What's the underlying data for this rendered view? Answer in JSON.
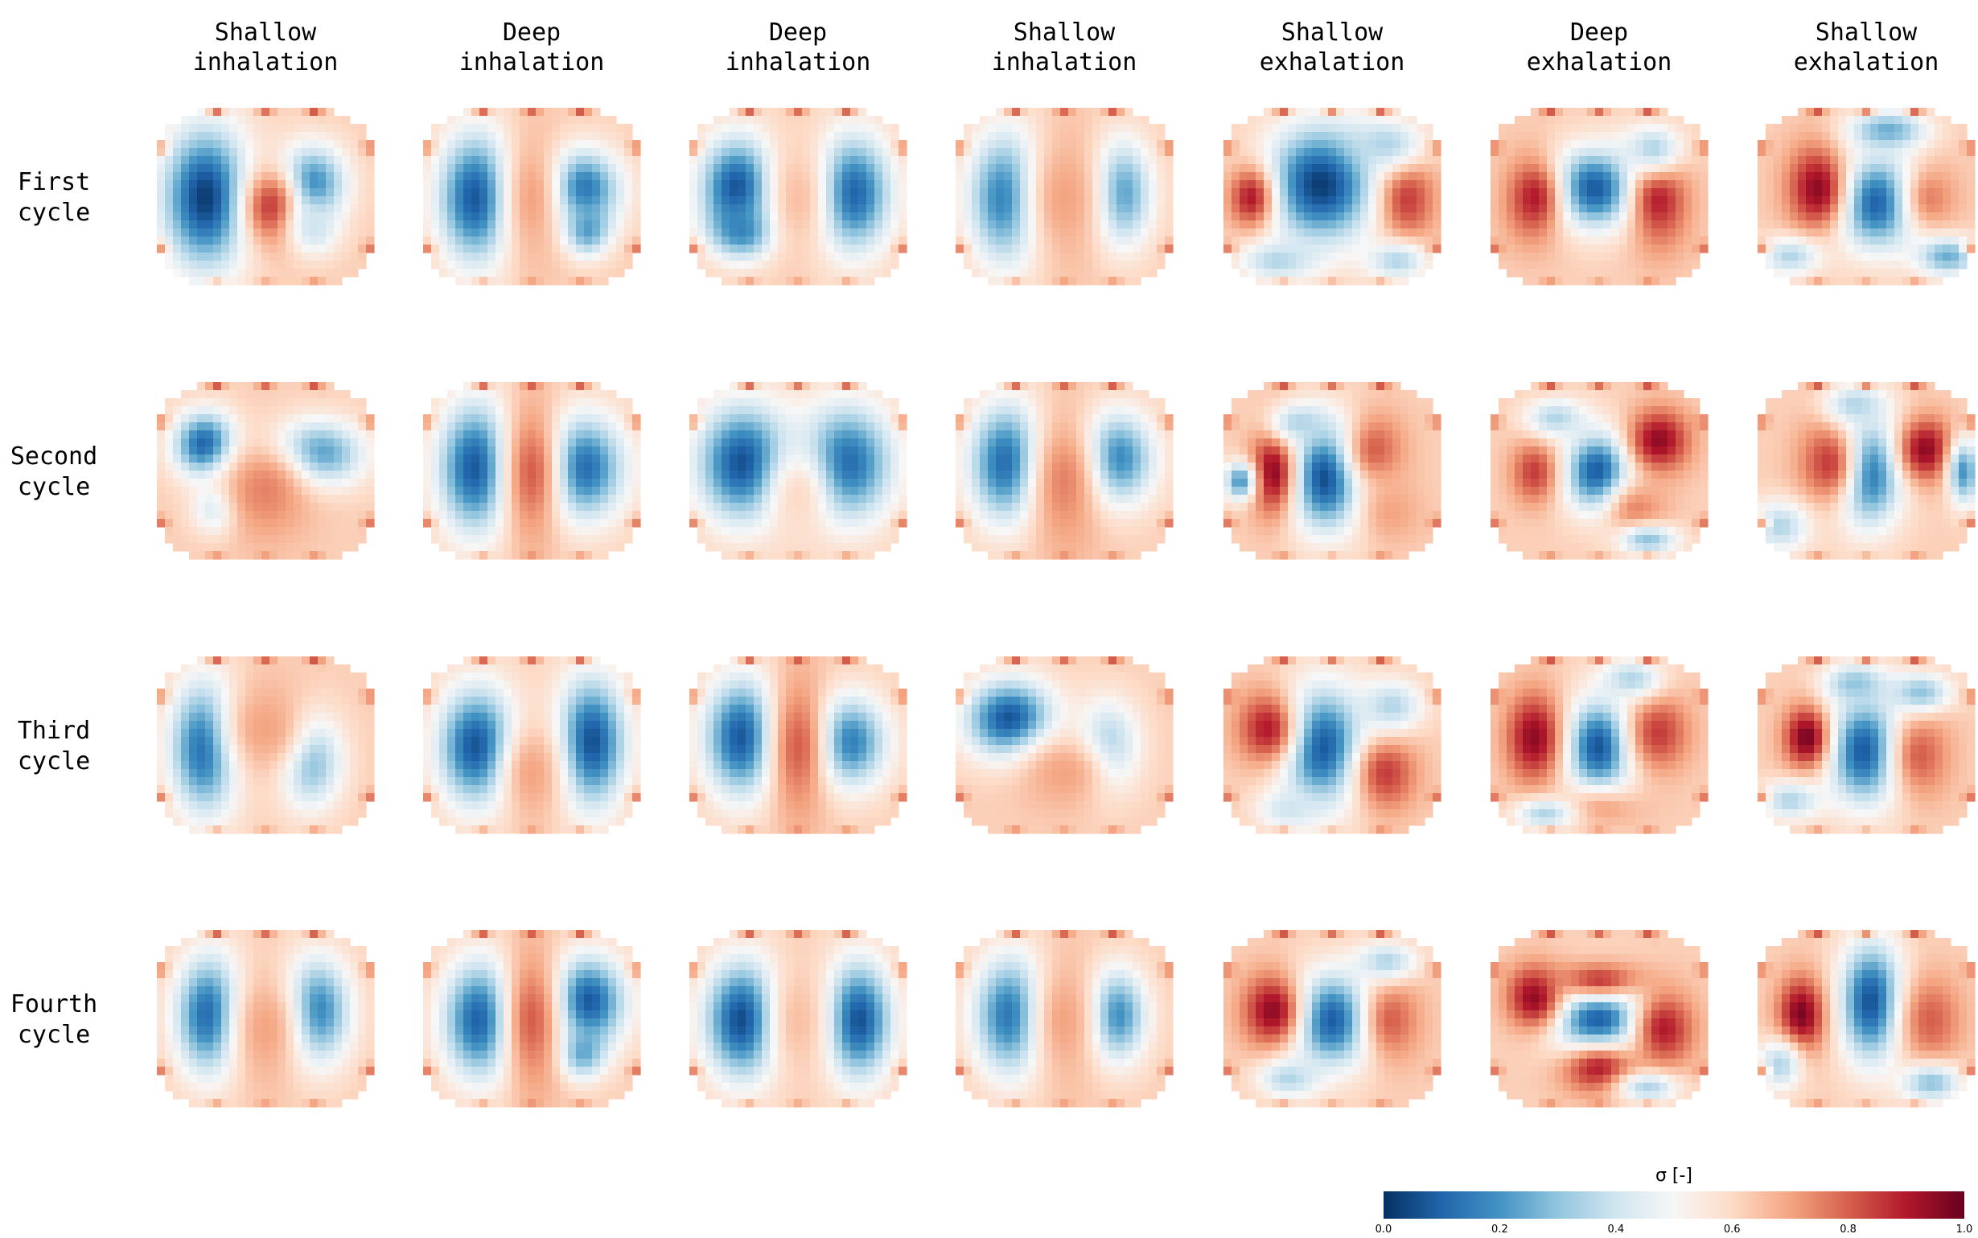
{
  "chart_data": {
    "type": "heatmap",
    "title": "",
    "columns": [
      {
        "line1": "Shallow",
        "line2": "inhalation"
      },
      {
        "line1": "Deep",
        "line2": "inhalation"
      },
      {
        "line1": "Deep",
        "line2": "inhalation"
      },
      {
        "line1": "Shallow",
        "line2": "inhalation"
      },
      {
        "line1": "Shallow",
        "line2": "exhalation"
      },
      {
        "line1": "Deep",
        "line2": "exhalation"
      },
      {
        "line1": "Shallow",
        "line2": "exhalation"
      }
    ],
    "rows": [
      {
        "line1": "First",
        "line2": "cycle"
      },
      {
        "line1": "Second",
        "line2": "cycle"
      },
      {
        "line1": "Third",
        "line2": "cycle"
      },
      {
        "line1": "Fourth",
        "line2": "cycle"
      }
    ],
    "colorbar": {
      "label": "σ [-]",
      "range": [
        0.0,
        1.0
      ],
      "ticks": [
        "0.0",
        "0.2",
        "0.4",
        "0.6",
        "0.8",
        "1.0"
      ],
      "colormap": "RdBu_r",
      "colors": [
        "#053061",
        "#2166ac",
        "#4393c3",
        "#92c5de",
        "#d1e5f0",
        "#f7f7f7",
        "#fddbc7",
        "#f4a582",
        "#d6604d",
        "#b2182b",
        "#67001f"
      ]
    },
    "panels": [
      [
        {
          "blobs": [
            [
              -0.55,
              0.0,
              0.28,
              0.55,
              0.02
            ],
            [
              0.42,
              -0.15,
              0.22,
              0.3,
              0.15
            ],
            [
              0.05,
              0.1,
              0.18,
              0.3,
              0.85
            ],
            [
              0.45,
              0.35,
              0.15,
              0.2,
              0.4
            ]
          ]
        },
        {
          "blobs": [
            [
              -0.5,
              0.0,
              0.25,
              0.5,
              0.05
            ],
            [
              0.45,
              -0.1,
              0.25,
              0.3,
              0.1
            ],
            [
              0.5,
              0.35,
              0.15,
              0.2,
              0.2
            ],
            [
              0.0,
              0.0,
              0.2,
              0.6,
              0.7
            ]
          ]
        },
        {
          "blobs": [
            [
              -0.55,
              -0.1,
              0.25,
              0.4,
              0.05
            ],
            [
              -0.5,
              0.35,
              0.2,
              0.2,
              0.15
            ],
            [
              0.5,
              -0.05,
              0.25,
              0.45,
              0.08
            ],
            [
              0.0,
              0.0,
              0.2,
              0.5,
              0.65
            ]
          ]
        },
        {
          "blobs": [
            [
              -0.5,
              0.0,
              0.25,
              0.5,
              0.05
            ],
            [
              0.5,
              -0.05,
              0.2,
              0.4,
              0.12
            ],
            [
              0.0,
              0.0,
              0.3,
              0.6,
              0.7
            ]
          ]
        },
        {
          "blobs": [
            [
              -0.1,
              -0.15,
              0.35,
              0.45,
              0.02
            ],
            [
              -0.75,
              0.0,
              0.15,
              0.25,
              0.9
            ],
            [
              0.7,
              0.0,
              0.18,
              0.35,
              0.85
            ],
            [
              0.5,
              -0.6,
              0.25,
              0.2,
              0.35
            ],
            [
              -0.5,
              0.7,
              0.25,
              0.15,
              0.35
            ],
            [
              0.6,
              0.7,
              0.2,
              0.15,
              0.35
            ]
          ]
        },
        {
          "blobs": [
            [
              -0.05,
              -0.1,
              0.35,
              0.3,
              0.05
            ],
            [
              -0.6,
              0.0,
              0.2,
              0.35,
              0.9
            ],
            [
              0.55,
              0.0,
              0.2,
              0.4,
              0.9
            ],
            [
              0.5,
              -0.55,
              0.2,
              0.2,
              0.35
            ]
          ]
        },
        {
          "blobs": [
            [
              0.1,
              0.05,
              0.3,
              0.35,
              0.05
            ],
            [
              -0.45,
              -0.1,
              0.2,
              0.35,
              0.95
            ],
            [
              0.6,
              0.0,
              0.2,
              0.3,
              0.75
            ],
            [
              0.2,
              -0.75,
              0.25,
              0.15,
              0.25
            ],
            [
              0.75,
              0.65,
              0.2,
              0.15,
              0.25
            ],
            [
              -0.7,
              0.65,
              0.2,
              0.15,
              0.35
            ]
          ]
        }
      ],
      [
        {
          "blobs": [
            [
              -0.55,
              -0.3,
              0.2,
              0.25,
              0.05
            ],
            [
              -0.45,
              0.4,
              0.15,
              0.2,
              0.35
            ],
            [
              0.45,
              -0.2,
              0.3,
              0.25,
              0.15
            ],
            [
              0.0,
              0.2,
              0.3,
              0.4,
              0.75
            ]
          ]
        },
        {
          "blobs": [
            [
              -0.5,
              -0.05,
              0.25,
              0.5,
              0.05
            ],
            [
              0.45,
              -0.05,
              0.28,
              0.4,
              0.08
            ],
            [
              0.0,
              0.0,
              0.2,
              0.6,
              0.8
            ]
          ]
        },
        {
          "blobs": [
            [
              -0.5,
              -0.1,
              0.3,
              0.45,
              0.05
            ],
            [
              0.45,
              -0.1,
              0.3,
              0.45,
              0.1
            ],
            [
              0.0,
              0.3,
              0.2,
              0.4,
              0.6
            ]
          ]
        },
        {
          "blobs": [
            [
              -0.5,
              -0.1,
              0.25,
              0.45,
              0.05
            ],
            [
              0.45,
              -0.15,
              0.25,
              0.35,
              0.1
            ],
            [
              0.0,
              0.1,
              0.25,
              0.6,
              0.75
            ]
          ]
        },
        {
          "blobs": [
            [
              -0.05,
              0.05,
              0.25,
              0.4,
              0.02
            ],
            [
              -0.55,
              0.0,
              0.15,
              0.35,
              0.95
            ],
            [
              0.4,
              -0.25,
              0.2,
              0.3,
              0.8
            ],
            [
              0.55,
              0.45,
              0.2,
              0.25,
              0.7
            ],
            [
              -0.3,
              -0.55,
              0.2,
              0.15,
              0.35
            ],
            [
              -0.85,
              0.1,
              0.1,
              0.15,
              0.2
            ]
          ]
        },
        {
          "blobs": [
            [
              0.0,
              0.0,
              0.22,
              0.3,
              0.05
            ],
            [
              0.55,
              -0.35,
              0.2,
              0.25,
              0.95
            ],
            [
              -0.6,
              0.0,
              0.15,
              0.25,
              0.85
            ],
            [
              0.35,
              0.45,
              0.2,
              0.25,
              0.75
            ],
            [
              -0.4,
              -0.6,
              0.2,
              0.15,
              0.35
            ],
            [
              0.45,
              0.75,
              0.2,
              0.12,
              0.3
            ]
          ]
        },
        {
          "blobs": [
            [
              0.0,
              0.0,
              0.22,
              0.4,
              0.05
            ],
            [
              0.55,
              -0.25,
              0.18,
              0.25,
              0.95
            ],
            [
              -0.35,
              -0.1,
              0.2,
              0.35,
              0.85
            ],
            [
              0.9,
              0.0,
              0.1,
              0.25,
              0.2
            ],
            [
              -0.1,
              -0.75,
              0.2,
              0.15,
              0.35
            ],
            [
              -0.8,
              0.6,
              0.2,
              0.2,
              0.35
            ]
          ]
        }
      ],
      [
        {
          "blobs": [
            [
              -0.55,
              0.0,
              0.22,
              0.5,
              0.05
            ],
            [
              0.4,
              0.15,
              0.2,
              0.35,
              0.2
            ],
            [
              0.0,
              -0.2,
              0.3,
              0.4,
              0.7
            ]
          ]
        },
        {
          "blobs": [
            [
              -0.5,
              0.0,
              0.25,
              0.45,
              0.05
            ],
            [
              0.55,
              -0.05,
              0.22,
              0.5,
              0.05
            ],
            [
              0.0,
              0.3,
              0.2,
              0.4,
              0.7
            ]
          ]
        },
        {
          "blobs": [
            [
              -0.5,
              -0.1,
              0.25,
              0.45,
              0.05
            ],
            [
              0.45,
              -0.05,
              0.25,
              0.35,
              0.12
            ],
            [
              0.0,
              0.0,
              0.2,
              0.6,
              0.8
            ]
          ]
        },
        {
          "blobs": [
            [
              -0.5,
              -0.3,
              0.28,
              0.3,
              0.05
            ],
            [
              0.4,
              0.0,
              0.2,
              0.35,
              0.3
            ],
            [
              0.0,
              0.3,
              0.3,
              0.3,
              0.7
            ]
          ]
        },
        {
          "blobs": [
            [
              -0.1,
              0.0,
              0.28,
              0.45,
              0.05
            ],
            [
              -0.6,
              -0.2,
              0.2,
              0.3,
              0.9
            ],
            [
              0.5,
              0.3,
              0.2,
              0.3,
              0.85
            ],
            [
              0.55,
              -0.45,
              0.2,
              0.2,
              0.35
            ],
            [
              -0.4,
              0.7,
              0.2,
              0.15,
              0.4
            ]
          ]
        },
        {
          "blobs": [
            [
              0.0,
              0.0,
              0.22,
              0.35,
              0.05
            ],
            [
              -0.6,
              -0.1,
              0.18,
              0.35,
              0.95
            ],
            [
              0.55,
              -0.15,
              0.2,
              0.3,
              0.85
            ],
            [
              0.0,
              0.7,
              0.3,
              0.15,
              0.7
            ],
            [
              0.3,
              -0.75,
              0.2,
              0.15,
              0.35
            ],
            [
              -0.5,
              0.75,
              0.2,
              0.12,
              0.35
            ]
          ]
        },
        {
          "blobs": [
            [
              0.0,
              0.05,
              0.25,
              0.4,
              0.05
            ],
            [
              -0.55,
              -0.1,
              0.15,
              0.25,
              0.98
            ],
            [
              0.5,
              0.1,
              0.2,
              0.35,
              0.8
            ],
            [
              -0.1,
              -0.7,
              0.2,
              0.15,
              0.3
            ],
            [
              0.5,
              -0.6,
              0.2,
              0.15,
              0.3
            ],
            [
              -0.7,
              0.6,
              0.2,
              0.15,
              0.35
            ]
          ]
        }
      ],
      [
        {
          "blobs": [
            [
              -0.5,
              -0.05,
              0.22,
              0.45,
              0.05
            ],
            [
              0.45,
              -0.1,
              0.22,
              0.4,
              0.1
            ],
            [
              0.0,
              0.1,
              0.25,
              0.5,
              0.7
            ]
          ]
        },
        {
          "blobs": [
            [
              -0.45,
              0.0,
              0.25,
              0.45,
              0.05
            ],
            [
              0.5,
              -0.2,
              0.25,
              0.35,
              0.05
            ],
            [
              0.45,
              0.35,
              0.15,
              0.2,
              0.2
            ],
            [
              0.0,
              0.0,
              0.2,
              0.6,
              0.8
            ]
          ]
        },
        {
          "blobs": [
            [
              -0.5,
              0.0,
              0.25,
              0.45,
              0.03
            ],
            [
              0.55,
              0.0,
              0.22,
              0.45,
              0.05
            ],
            [
              0.0,
              0.0,
              0.2,
              0.5,
              0.65
            ]
          ]
        },
        {
          "blobs": [
            [
              -0.45,
              -0.05,
              0.25,
              0.45,
              0.05
            ],
            [
              0.45,
              -0.05,
              0.2,
              0.35,
              0.1
            ],
            [
              0.0,
              0.0,
              0.25,
              0.6,
              0.7
            ]
          ]
        },
        {
          "blobs": [
            [
              0.0,
              0.0,
              0.3,
              0.35,
              0.05
            ],
            [
              -0.55,
              -0.1,
              0.2,
              0.3,
              0.95
            ],
            [
              0.55,
              0.0,
              0.2,
              0.35,
              0.8
            ],
            [
              -0.4,
              0.65,
              0.2,
              0.15,
              0.35
            ],
            [
              0.5,
              -0.65,
              0.2,
              0.15,
              0.35
            ]
          ]
        },
        {
          "blobs": [
            [
              0.0,
              0.0,
              0.3,
              0.3,
              0.05
            ],
            [
              -0.6,
              -0.25,
              0.18,
              0.25,
              0.95
            ],
            [
              0.6,
              0.1,
              0.2,
              0.3,
              0.9
            ],
            [
              0.0,
              0.55,
              0.25,
              0.2,
              0.9
            ],
            [
              0.0,
              -0.45,
              0.3,
              0.15,
              0.85
            ],
            [
              0.45,
              0.75,
              0.2,
              0.12,
              0.35
            ]
          ]
        },
        {
          "blobs": [
            [
              0.05,
              -0.2,
              0.2,
              0.45,
              0.05
            ],
            [
              -0.6,
              -0.05,
              0.15,
              0.3,
              0.98
            ],
            [
              0.6,
              0.0,
              0.2,
              0.35,
              0.8
            ],
            [
              0.6,
              0.7,
              0.2,
              0.15,
              0.3
            ],
            [
              -0.8,
              0.5,
              0.15,
              0.2,
              0.35
            ]
          ]
        }
      ]
    ]
  }
}
